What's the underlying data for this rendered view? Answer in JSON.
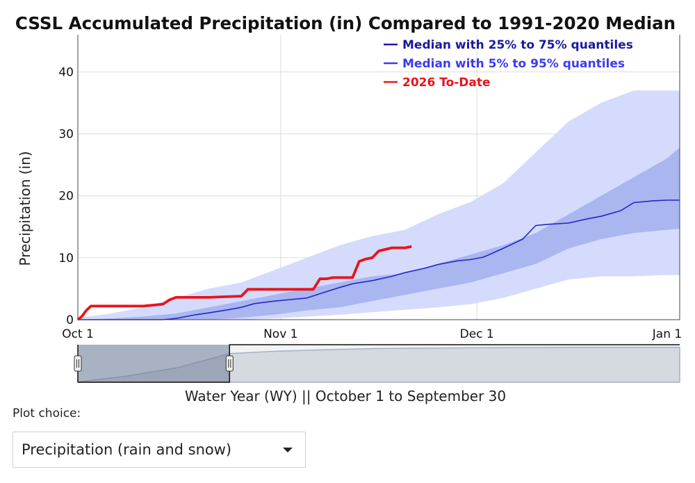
{
  "chart_data": {
    "type": "area",
    "title": "CSSL Accumulated Precipitation (in) Compared to 1991-2020 Median",
    "ylabel": "Precipitation (in)",
    "xlabel": "Water Year (WY) || October 1 to September 30",
    "ylim": [
      0,
      46
    ],
    "yticks": [
      0,
      10,
      20,
      30,
      40
    ],
    "xticks": [
      {
        "day": 0,
        "label": "Oct 1"
      },
      {
        "day": 31,
        "label": "Nov 1"
      },
      {
        "day": 61,
        "label": "Dec 1"
      },
      {
        "day": 92,
        "label": "Jan 1"
      }
    ],
    "grid": true,
    "legend_position": "top-right",
    "legend": [
      {
        "label": "Median with 25% to 75% quantiles",
        "color": "#1a1a9e"
      },
      {
        "label": "Median with 5% to 95% quantiles",
        "color": "#3b3bf0"
      },
      {
        "label": "2026 To-Date",
        "color": "#e8141b"
      }
    ],
    "series": {
      "q05_q95": {
        "color": "#d4dbfc",
        "x": [
          0,
          5,
          10,
          15,
          20,
          25,
          30,
          35,
          40,
          45,
          50,
          55,
          60,
          65,
          70,
          75,
          80,
          85,
          90,
          92
        ],
        "lower": [
          0,
          0,
          0,
          0,
          0,
          0,
          0.2,
          0.5,
          0.8,
          1.2,
          1.6,
          2,
          2.5,
          3.5,
          5,
          6.5,
          7,
          7,
          7.2,
          7.2
        ],
        "upper": [
          0.3,
          1,
          2,
          3.5,
          5,
          6,
          8,
          10,
          12,
          13.5,
          14.5,
          17,
          19,
          22,
          27,
          32,
          35,
          37,
          37,
          37
        ]
      },
      "q25_q75": {
        "color": "#a9b6f0",
        "x": [
          0,
          5,
          10,
          15,
          20,
          25,
          30,
          35,
          40,
          45,
          50,
          55,
          60,
          65,
          70,
          75,
          80,
          85,
          90,
          92
        ],
        "lower": [
          0,
          0,
          0,
          0,
          0,
          0.3,
          0.8,
          1.5,
          2,
          3,
          4,
          5,
          6,
          7.5,
          9,
          11.5,
          13,
          14,
          14.5,
          14.7
        ],
        "upper": [
          0,
          0.2,
          0.5,
          1,
          2,
          3,
          4,
          5,
          6,
          7,
          7.5,
          9,
          10.5,
          12,
          14,
          17,
          20,
          23,
          26,
          27.8
        ]
      },
      "median": {
        "color": "#2525c8",
        "x": [
          0,
          5,
          10,
          13,
          15,
          18,
          20,
          23,
          25,
          27,
          30,
          32,
          35,
          37,
          40,
          42,
          45,
          48,
          50,
          53,
          55,
          58,
          60,
          62,
          65,
          68,
          70,
          72,
          75,
          78,
          80,
          83,
          85,
          88,
          90,
          92
        ],
        "y": [
          0,
          0,
          0,
          0,
          0.2,
          0.8,
          1.1,
          1.6,
          2,
          2.6,
          3,
          3.2,
          3.5,
          4.2,
          5.2,
          5.8,
          6.3,
          7,
          7.6,
          8.3,
          8.9,
          9.5,
          9.7,
          10.1,
          11.5,
          13,
          15.2,
          15.4,
          15.6,
          16.3,
          16.7,
          17.6,
          18.9,
          19.2,
          19.3,
          19.3
        ]
      },
      "to_date": {
        "color": "#e8141b",
        "x": [
          0,
          0.6,
          1.3,
          2,
          3,
          5,
          10,
          13,
          14,
          15,
          16,
          17,
          20,
          25,
          26,
          27,
          28,
          33,
          36,
          37,
          38,
          39,
          40,
          42,
          43,
          44,
          45,
          46,
          48,
          49,
          50,
          51
        ],
        "y": [
          0,
          0.5,
          1.5,
          2.2,
          2.2,
          2.2,
          2.2,
          2.5,
          3.2,
          3.6,
          3.6,
          3.6,
          3.6,
          3.8,
          4.9,
          4.9,
          4.9,
          4.9,
          4.9,
          6.6,
          6.6,
          6.8,
          6.8,
          6.8,
          9.4,
          9.8,
          10,
          11.1,
          11.6,
          11.6,
          11.6,
          11.8
        ]
      }
    },
    "rangeslider": {
      "window_start_day": 0,
      "window_end_day": 92
    }
  },
  "plot_choice": {
    "label": "Plot choice:",
    "selected": "Precipitation (rain and snow)"
  }
}
